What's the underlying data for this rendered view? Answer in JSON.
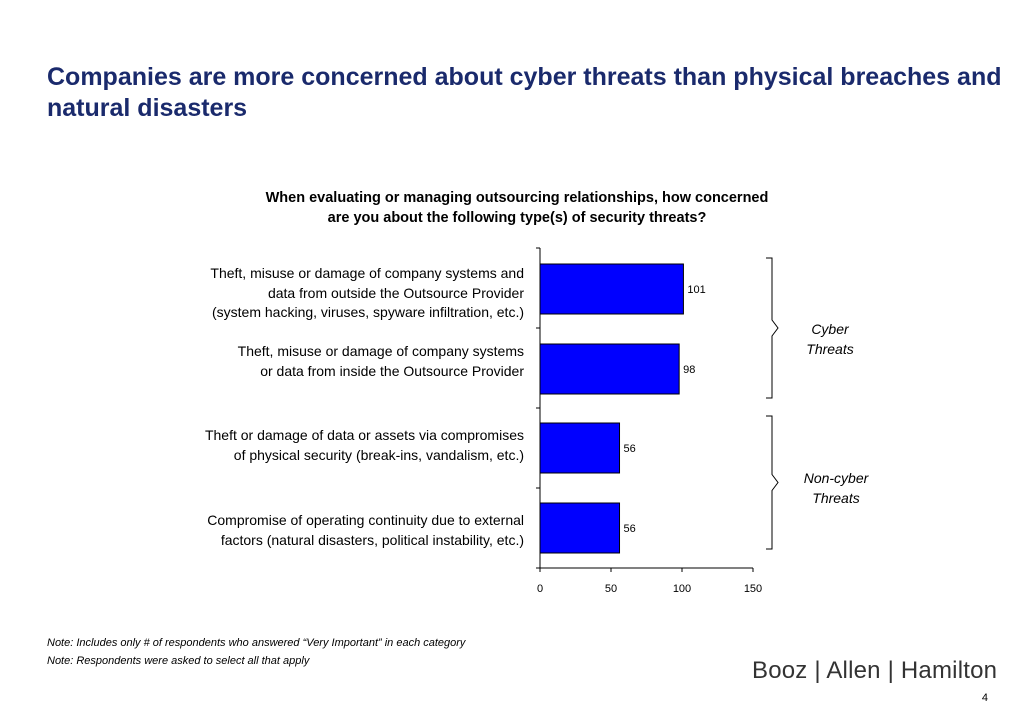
{
  "title": "Companies are more concerned about cyber threats than physical breaches and natural disasters",
  "chart_data": {
    "type": "bar",
    "orientation": "horizontal",
    "title": "When evaluating or managing outsourcing relationships, how concerned are you about the following type(s) of security threats?",
    "categories": [
      "Theft, misuse or damage of company systems and\ndata from outside the Outsource Provider\n(system hacking, viruses, spyware infiltration, etc.)",
      "Theft, misuse or damage of company systems\nor data from inside the Outsource Provider",
      "Theft or damage of data or assets via compromises\nof physical security (break-ins, vandalism, etc.)",
      "Compromise of operating continuity due to external\nfactors (natural disasters, political instability, etc.)"
    ],
    "values": [
      101,
      98,
      56,
      56
    ],
    "data_labels": [
      "101",
      "98",
      "56",
      "56"
    ],
    "xlim": [
      0,
      150
    ],
    "xticks": [
      0,
      50,
      100,
      150
    ],
    "bar_color": "#0000ff",
    "grid": false,
    "groups": [
      {
        "label": "Cyber\nThreats",
        "categories": [
          0,
          1
        ]
      },
      {
        "label": "Non-cyber\nThreats",
        "categories": [
          2,
          3
        ]
      }
    ]
  },
  "notes": [
    "Note:  Includes only # of respondents who answered “Very Important” in each category",
    "Note:  Respondents were asked to select all that apply"
  ],
  "logo": "Booz | Allen | Hamilton",
  "page_number": "4"
}
